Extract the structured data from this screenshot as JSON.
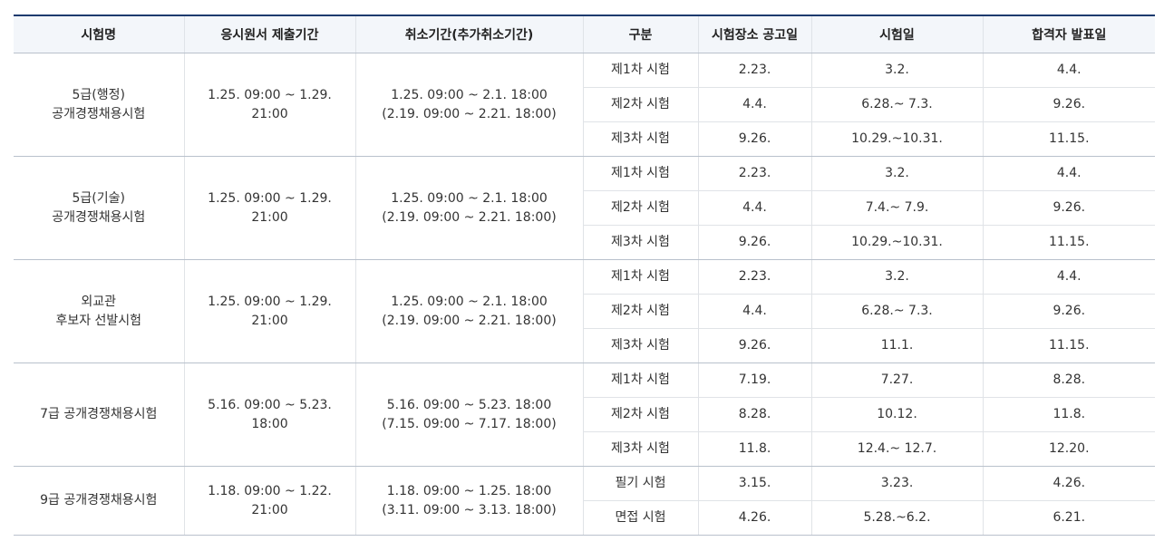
{
  "headers": [
    "시험명",
    "응시원서 제출기간",
    "취소기간(추가취소기간)",
    "구분",
    "시험장소 공고일",
    "시험일",
    "합격자 발표일"
  ],
  "groups": [
    {
      "name": [
        "5급(행정)",
        "공개경쟁채용시험"
      ],
      "apply": [
        "1.25. 09:00 ~ 1.29.",
        "21:00"
      ],
      "cancel": [
        "1.25. 09:00 ~ 2.1. 18:00",
        "(2.19. 09:00 ~ 2.21. 18:00)"
      ],
      "rows": [
        {
          "stage": "제1차 시험",
          "notice": "2.23.",
          "exam": "3.2.",
          "result": "4.4."
        },
        {
          "stage": "제2차 시험",
          "notice": "4.4.",
          "exam": "6.28.~ 7.3.",
          "result": "9.26."
        },
        {
          "stage": "제3차 시험",
          "notice": "9.26.",
          "exam": "10.29.~10.31.",
          "result": "11.15."
        }
      ]
    },
    {
      "name": [
        "5급(기술)",
        "공개경쟁채용시험"
      ],
      "apply": [
        "1.25. 09:00 ~ 1.29.",
        "21:00"
      ],
      "cancel": [
        "1.25. 09:00 ~ 2.1. 18:00",
        "(2.19. 09:00 ~ 2.21. 18:00)"
      ],
      "rows": [
        {
          "stage": "제1차 시험",
          "notice": "2.23.",
          "exam": "3.2.",
          "result": "4.4."
        },
        {
          "stage": "제2차 시험",
          "notice": "4.4.",
          "exam": "7.4.~ 7.9.",
          "result": "9.26."
        },
        {
          "stage": "제3차 시험",
          "notice": "9.26.",
          "exam": "10.29.~10.31.",
          "result": "11.15."
        }
      ]
    },
    {
      "name": [
        "외교관",
        "후보자 선발시험"
      ],
      "apply": [
        "1.25. 09:00 ~ 1.29.",
        "21:00"
      ],
      "cancel": [
        "1.25. 09:00 ~ 2.1. 18:00",
        "(2.19. 09:00 ~ 2.21. 18:00)"
      ],
      "rows": [
        {
          "stage": "제1차 시험",
          "notice": "2.23.",
          "exam": "3.2.",
          "result": "4.4."
        },
        {
          "stage": "제2차 시험",
          "notice": "4.4.",
          "exam": "6.28.~ 7.3.",
          "result": "9.26."
        },
        {
          "stage": "제3차 시험",
          "notice": "9.26.",
          "exam": "11.1.",
          "result": "11.15."
        }
      ]
    },
    {
      "name": [
        "7급 공개경쟁채용시험"
      ],
      "apply": [
        "5.16. 09:00 ~ 5.23.",
        "18:00"
      ],
      "cancel": [
        "5.16. 09:00 ~ 5.23. 18:00",
        "(7.15. 09:00 ~ 7.17. 18:00)"
      ],
      "rows": [
        {
          "stage": "제1차 시험",
          "notice": "7.19.",
          "exam": "7.27.",
          "result": "8.28."
        },
        {
          "stage": "제2차 시험",
          "notice": "8.28.",
          "exam": "10.12.",
          "result": "11.8."
        },
        {
          "stage": "제3차 시험",
          "notice": "11.8.",
          "exam": "12.4.~ 12.7.",
          "result": "12.20."
        }
      ]
    },
    {
      "name": [
        "9급 공개경쟁채용시험"
      ],
      "apply": [
        "1.18. 09:00 ~ 1.22.",
        "21:00"
      ],
      "cancel": [
        "1.18. 09:00 ~ 1.25. 18:00",
        "(3.11. 09:00 ~ 3.13. 18:00)"
      ],
      "rows": [
        {
          "stage": "필기 시험",
          "notice": "3.15.",
          "exam": "3.23.",
          "result": "4.26."
        },
        {
          "stage": "면접 시험",
          "notice": "4.26.",
          "exam": "5.28.~6.2.",
          "result": "6.21."
        }
      ]
    }
  ]
}
